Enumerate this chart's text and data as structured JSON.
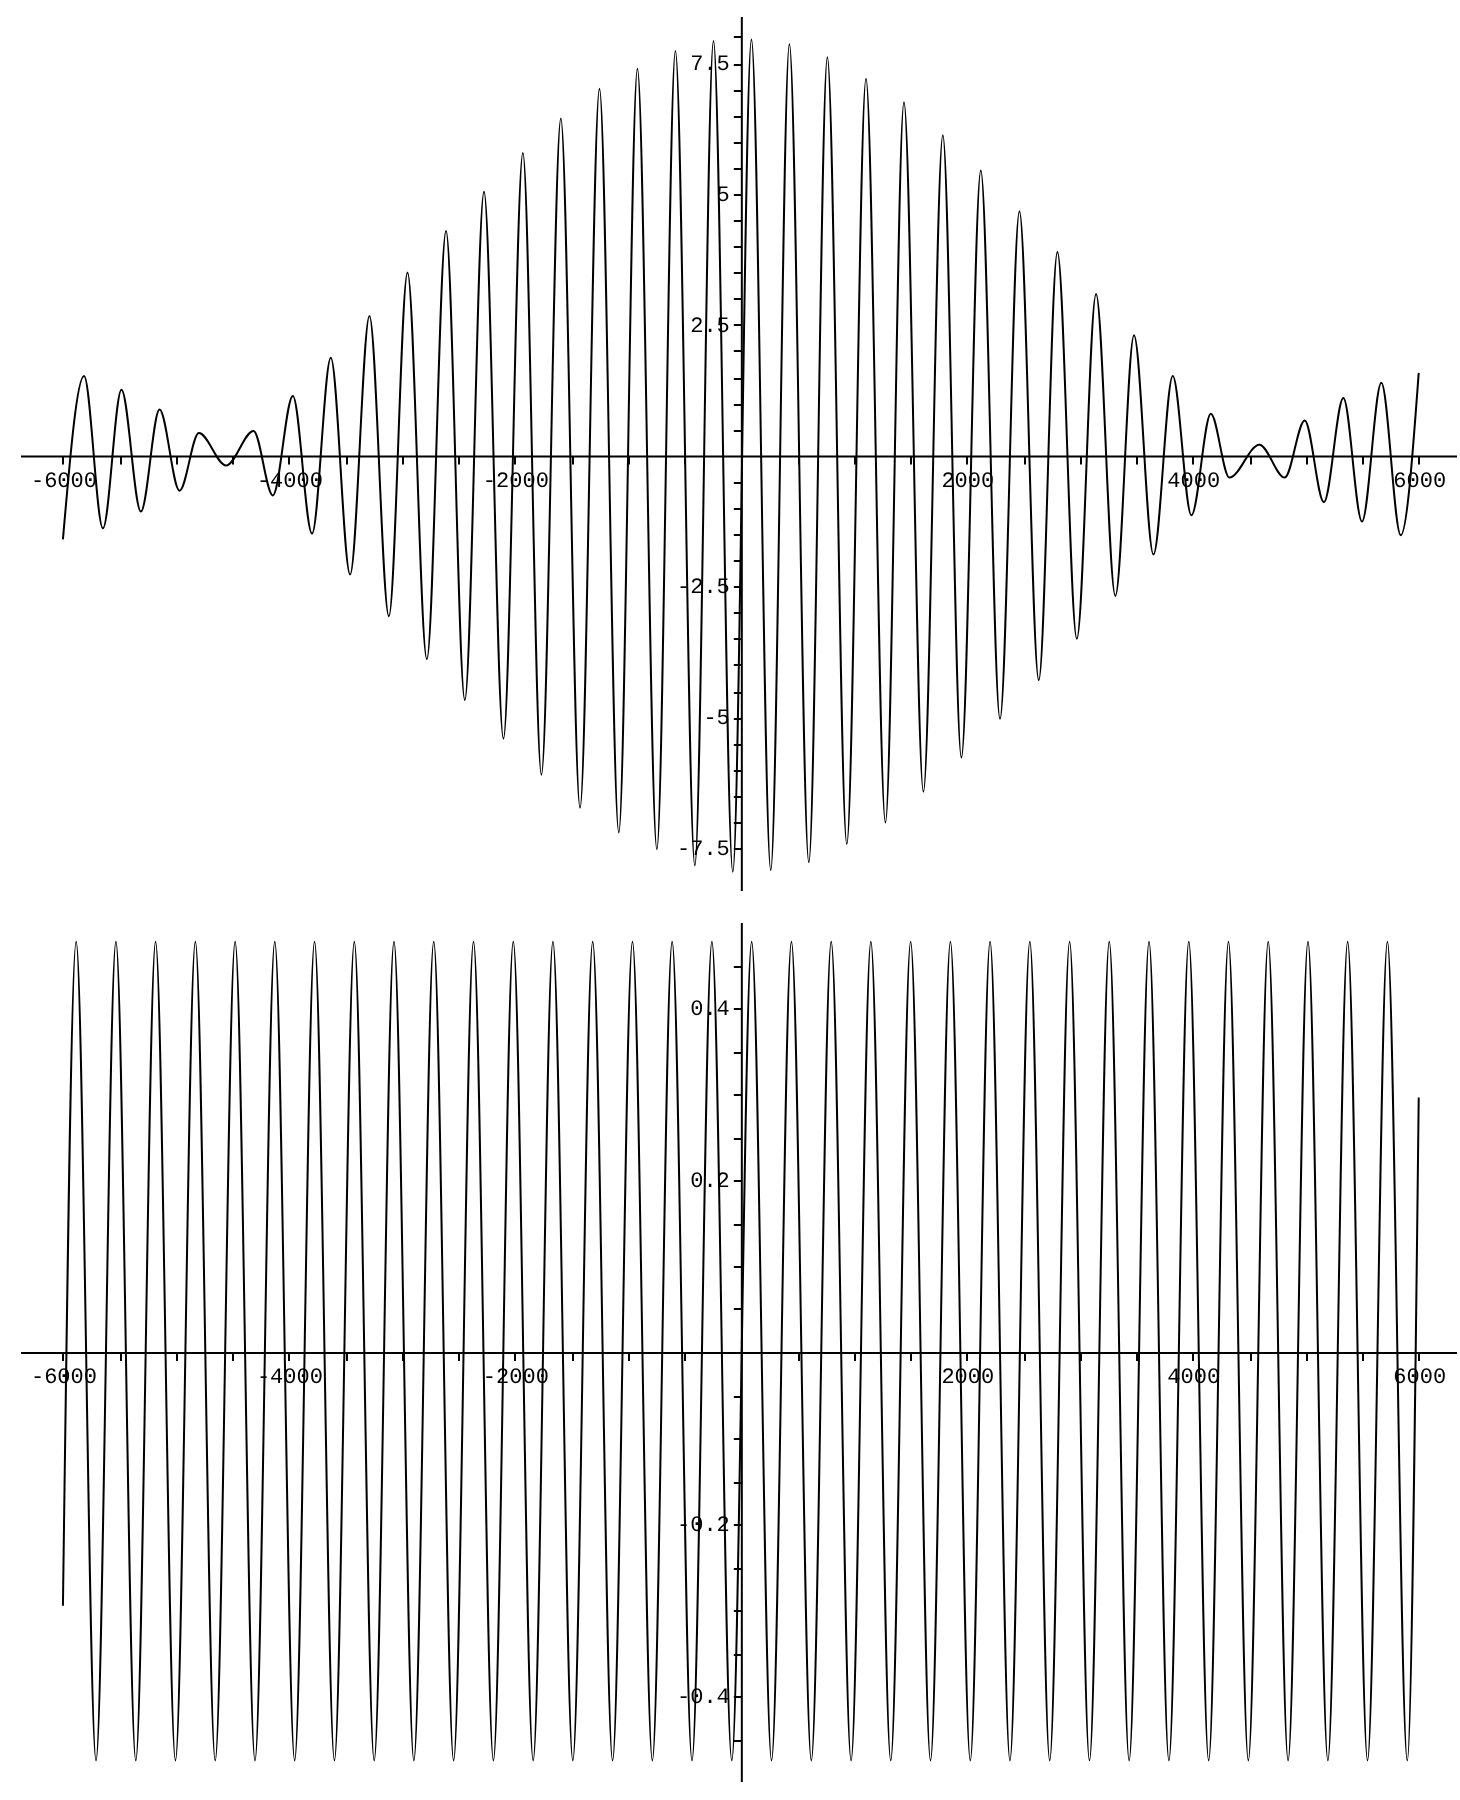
{
  "chart_data": [
    {
      "type": "line",
      "color": "#000000",
      "x": [
        -6000,
        -5813,
        -5646,
        -5482,
        -5310,
        -5145,
        -4968,
        -4797,
        -4556,
        -4313,
        -4142,
        -3965,
        -3795,
        -3629,
        -3458,
        -3287,
        -3115,
        -2950,
        -2779,
        -2609,
        -2443,
        -2273,
        -2101,
        -1929,
        -1765,
        -1593,
        -1423,
        -1251,
        -1080,
        -915,
        -743,
        -579,
        -407,
        -242,
        -71,
        94,
        265,
        430,
        602,
        766,
        938,
        1108,
        1280,
        1444,
        1616,
        1788,
        1952,
        2124,
        2294,
        2466,
        2637,
        2802,
        2974,
        3144,
        3315,
        3480,
        3652,
        3823,
        3988,
        4160,
        4324,
        4590,
        4814,
        4991,
        5161,
        5333,
        5498,
        5669,
        5841,
        6000
      ],
      "values": [
        -1.6,
        1.52,
        -1.39,
        1.26,
        -1.07,
        0.88,
        -0.67,
        0.43,
        -0.19,
        0.47,
        -0.76,
        1.14,
        -1.49,
        1.87,
        -2.27,
        2.67,
        -3.07,
        3.5,
        -3.89,
        4.29,
        -4.67,
        5.04,
        -5.41,
        5.78,
        -6.1,
        6.44,
        -6.73,
        7.01,
        -7.2,
        7.39,
        -7.52,
        7.73,
        -7.83,
        7.92,
        -7.95,
        7.95,
        -7.92,
        7.86,
        -7.77,
        7.61,
        -7.42,
        7.2,
        -7.01,
        6.75,
        -6.42,
        6.12,
        -5.77,
        5.45,
        -5.03,
        4.67,
        -4.29,
        3.89,
        -3.5,
        3.09,
        -2.68,
        2.3,
        -1.89,
        1.52,
        -1.14,
        0.8,
        -0.42,
        0.21,
        -0.42,
        0.67,
        -0.89,
        1.1,
        -1.26,
        1.39,
        -1.52,
        1.58
      ],
      "xlim": [
        -6380,
        6330
      ],
      "ylim": [
        -8.3,
        8.4
      ],
      "xticks": [
        -6000,
        {
          "value": -5500,
          "label": null
        },
        {
          "value": -5000,
          "label": null
        },
        {
          "value": -4500,
          "label": null
        },
        -4000,
        {
          "value": -3500,
          "label": null
        },
        {
          "value": -3000,
          "label": null
        },
        {
          "value": -2500,
          "label": null
        },
        -2000,
        {
          "value": -1500,
          "label": null
        },
        {
          "value": -1000,
          "label": null
        },
        {
          "value": -500,
          "label": null
        },
        {
          "value": 500,
          "label": null
        },
        {
          "value": 1000,
          "label": null
        },
        {
          "value": 1500,
          "label": null
        },
        2000,
        {
          "value": 2500,
          "label": null
        },
        {
          "value": 3000,
          "label": null
        },
        {
          "value": 3500,
          "label": null
        },
        4000,
        {
          "value": 4500,
          "label": null
        },
        {
          "value": 5000,
          "label": null
        },
        {
          "value": 5500,
          "label": null
        },
        6000
      ],
      "yticks": [
        -7.5,
        {
          "value": -7,
          "label": null
        },
        {
          "value": -6.5,
          "label": null
        },
        {
          "value": -6,
          "label": null
        },
        {
          "value": -5.5,
          "label": null
        },
        -5,
        {
          "value": -4.5,
          "label": null
        },
        {
          "value": -4,
          "label": null
        },
        {
          "value": -3.5,
          "label": null
        },
        {
          "value": -3,
          "label": null
        },
        -2.5,
        {
          "value": -2,
          "label": null
        },
        {
          "value": -1.5,
          "label": null
        },
        {
          "value": -1,
          "label": null
        },
        {
          "value": -0.5,
          "label": null
        },
        {
          "value": 0.5,
          "label": null
        },
        {
          "value": 1,
          "label": null
        },
        {
          "value": 1.5,
          "label": null
        },
        {
          "value": 2,
          "label": null
        },
        2.5,
        {
          "value": 3,
          "label": null
        },
        {
          "value": 3.5,
          "label": null
        },
        {
          "value": 4,
          "label": null
        },
        {
          "value": 4.5,
          "label": null
        },
        5,
        {
          "value": 5.5,
          "label": null
        },
        {
          "value": 6,
          "label": null
        },
        {
          "value": 6.5,
          "label": null
        },
        {
          "value": 7,
          "label": null
        },
        7.5,
        {
          "value": 8,
          "label": null
        }
      ],
      "grid": false
    },
    {
      "type": "line",
      "color": "#000000",
      "x": [
        -6000,
        -5883,
        -5707,
        -5531,
        -5355,
        -5180,
        -5004,
        -4828,
        -4652,
        -4476,
        -4300,
        -4125,
        -3949,
        -3773,
        -3597,
        -3421,
        -3245,
        -3070,
        -2894,
        -2718,
        -2542,
        -2366,
        -2190,
        -2014,
        -1838,
        -1663,
        -1487,
        -1311,
        -1135,
        -959,
        -783,
        -608,
        -432,
        -256,
        -80,
        96,
        272,
        448,
        624,
        800,
        976,
        1151,
        1327,
        1503,
        1679,
        1855,
        2031,
        2206,
        2382,
        2558,
        2734,
        2910,
        3086,
        3261,
        3437,
        3613,
        3789,
        3965,
        4141,
        4316,
        4492,
        4668,
        4844,
        5020,
        5196,
        5371,
        5547,
        5723,
        5899,
        6000
      ],
      "values": [
        -0.295,
        0.477,
        -0.475,
        0.477,
        -0.475,
        0.477,
        -0.475,
        0.477,
        -0.475,
        0.477,
        -0.475,
        0.477,
        -0.475,
        0.477,
        -0.475,
        0.477,
        -0.475,
        0.477,
        -0.475,
        0.477,
        -0.475,
        0.477,
        -0.475,
        0.477,
        -0.475,
        0.477,
        -0.475,
        0.477,
        -0.475,
        0.477,
        -0.475,
        0.477,
        -0.475,
        0.477,
        -0.475,
        0.477,
        -0.475,
        0.477,
        -0.475,
        0.477,
        -0.475,
        0.477,
        -0.475,
        0.477,
        -0.475,
        0.477,
        -0.475,
        0.477,
        -0.475,
        0.477,
        -0.475,
        0.477,
        -0.475,
        0.477,
        -0.475,
        0.477,
        -0.475,
        0.477,
        -0.475,
        0.477,
        -0.475,
        0.477,
        -0.475,
        0.477,
        -0.475,
        0.477,
        -0.475,
        0.477,
        -0.475,
        0.296
      ],
      "xlim": [
        -6380,
        6330
      ],
      "ylim": [
        -0.5,
        0.5
      ],
      "xticks": [
        -6000,
        {
          "value": -5500,
          "label": null
        },
        {
          "value": -5000,
          "label": null
        },
        {
          "value": -4500,
          "label": null
        },
        -4000,
        {
          "value": -3500,
          "label": null
        },
        {
          "value": -3000,
          "label": null
        },
        {
          "value": -2500,
          "label": null
        },
        -2000,
        {
          "value": -1500,
          "label": null
        },
        {
          "value": -1000,
          "label": null
        },
        {
          "value": -500,
          "label": null
        },
        {
          "value": 500,
          "label": null
        },
        {
          "value": 1000,
          "label": null
        },
        {
          "value": 1500,
          "label": null
        },
        2000,
        {
          "value": 2500,
          "label": null
        },
        {
          "value": 3000,
          "label": null
        },
        {
          "value": 3500,
          "label": null
        },
        4000,
        {
          "value": 4500,
          "label": null
        },
        {
          "value": 5000,
          "label": null
        },
        {
          "value": 5500,
          "label": null
        },
        6000
      ],
      "yticks": [
        {
          "value": -0.45,
          "label": null
        },
        -0.4,
        {
          "value": -0.35,
          "label": null
        },
        {
          "value": -0.3,
          "label": null
        },
        {
          "value": -0.25,
          "label": null
        },
        -0.2,
        {
          "value": -0.15,
          "label": null
        },
        {
          "value": -0.1,
          "label": null
        },
        {
          "value": -0.05,
          "label": null
        },
        {
          "value": 0.05,
          "label": null
        },
        {
          "value": 0.1,
          "label": null
        },
        {
          "value": 0.15,
          "label": null
        },
        0.2,
        {
          "value": 0.25,
          "label": null
        },
        {
          "value": 0.3,
          "label": null
        },
        {
          "value": 0.35,
          "label": null
        },
        0.4,
        {
          "value": 0.45,
          "label": null
        }
      ],
      "grid": false
    }
  ]
}
